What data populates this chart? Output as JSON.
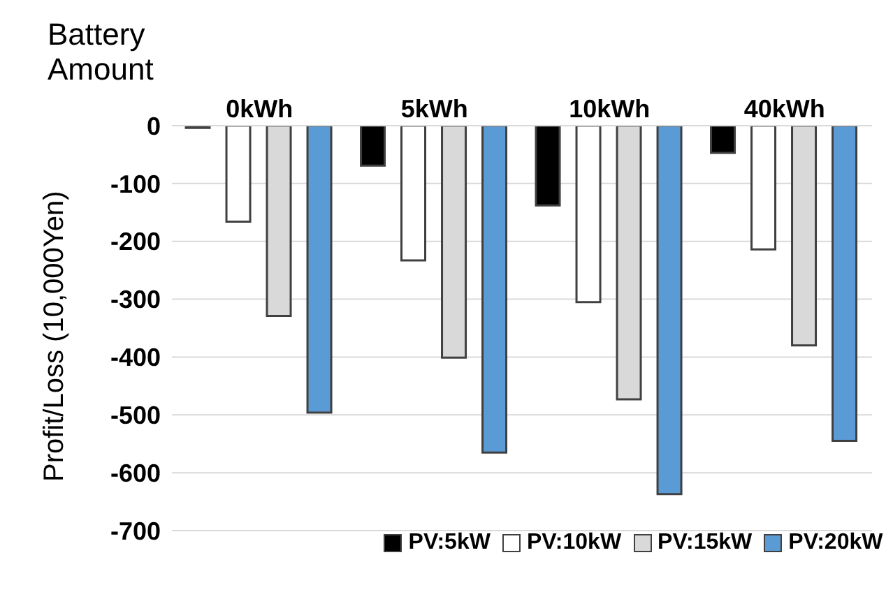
{
  "chart_data": {
    "type": "bar",
    "xlabel": "Battery Amount",
    "ylabel": "Profit/Loss (10,000Yen)",
    "categories": [
      "0kWh",
      "5kWh",
      "10kWh",
      "40kWh"
    ],
    "series": [
      {
        "name": "PV:5kW",
        "color": "#000000",
        "values": [
          -4,
          -69,
          -138,
          -47
        ]
      },
      {
        "name": "PV:10kW",
        "color": "#ffffff",
        "values": [
          -166,
          -233,
          -305,
          -214
        ]
      },
      {
        "name": "PV:15kW",
        "color": "#d9d9d9",
        "values": [
          -329,
          -401,
          -473,
          -380
        ]
      },
      {
        "name": "PV:20kW",
        "color": "#5b9bd5",
        "values": [
          -496,
          -565,
          -637,
          -545
        ]
      }
    ],
    "ylim": [
      -700,
      0
    ],
    "yticks": [
      -700,
      -600,
      -500,
      -400,
      -300,
      -200,
      -100,
      0
    ],
    "grid": "y",
    "legend": "bottom"
  }
}
